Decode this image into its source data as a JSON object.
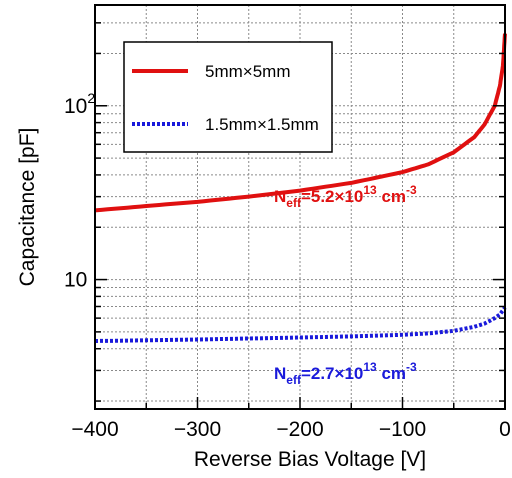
{
  "chart_data": {
    "type": "line",
    "xlabel": "Reverse Bias Voltage [V]",
    "ylabel": "Capacitance [pF]",
    "xlim": [
      -400,
      0
    ],
    "ylim": [
      1.8,
      380
    ],
    "yscale": "log",
    "grid": true,
    "legend_position": "top-left",
    "x_ticks": [
      {
        "value": -400,
        "label": "−400"
      },
      {
        "value": -300,
        "label": "−300"
      },
      {
        "value": -200,
        "label": "−200"
      },
      {
        "value": -100,
        "label": "−100"
      },
      {
        "value": 0,
        "label": "0"
      }
    ],
    "y_ticks": [
      {
        "value": 10,
        "base": "10",
        "exp": ""
      },
      {
        "value": 100,
        "base": "10",
        "exp": "2"
      }
    ],
    "series": [
      {
        "name": "5mm×5mm",
        "color": "#e01010",
        "style": "solid",
        "x": [
          -400,
          -350,
          -300,
          -250,
          -200,
          -150,
          -100,
          -75,
          -50,
          -30,
          -20,
          -10,
          -5,
          -2,
          0
        ],
        "y": [
          25,
          26.5,
          28,
          30,
          32.5,
          36,
          41.5,
          46,
          54,
          66,
          78,
          100,
          130,
          170,
          260
        ]
      },
      {
        "name": "1.5mm×1.5mm",
        "color": "#1a1adb",
        "style": "dotted",
        "x": [
          -400,
          -350,
          -300,
          -250,
          -200,
          -150,
          -100,
          -75,
          -50,
          -30,
          -20,
          -10,
          -5,
          0
        ],
        "y": [
          4.43,
          4.47,
          4.52,
          4.58,
          4.64,
          4.71,
          4.81,
          4.9,
          5.07,
          5.35,
          5.58,
          6.0,
          6.3,
          6.9
        ]
      }
    ],
    "annotations": [
      {
        "base": "N",
        "sub": "eff",
        "mid": "=5.2×10",
        "sup": "13",
        "unit": " cm",
        "unit_sup": "-3",
        "color": "#e01010"
      },
      {
        "base": "N",
        "sub": "eff",
        "mid": "=2.7×10",
        "sup": "13",
        "unit": " cm",
        "unit_sup": "-3",
        "color": "#1a1adb"
      }
    ]
  }
}
